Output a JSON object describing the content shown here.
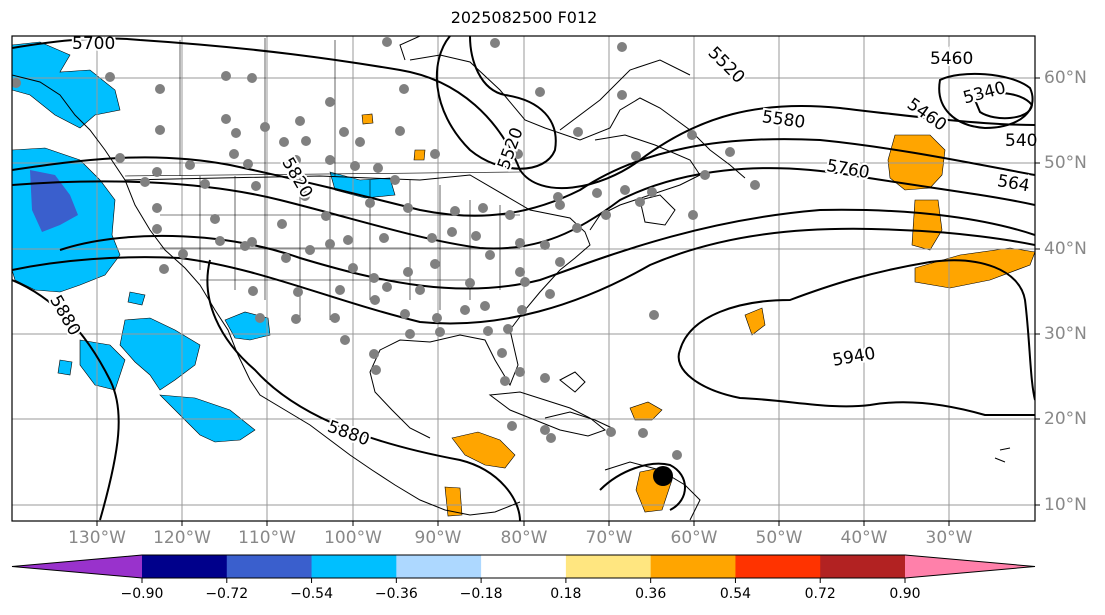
{
  "title": "2025082500 F012",
  "longitude_labels": [
    "130°W",
    "120°W",
    "110°W",
    "100°W",
    "90°W",
    "80°W",
    "70°W",
    "60°W",
    "50°W",
    "40°W",
    "30°W"
  ],
  "latitude_labels": [
    "60°N",
    "50°N",
    "40°N",
    "30°N",
    "20°N",
    "10°N"
  ],
  "contour_labels": [
    "5700",
    "5520",
    "5820",
    "5580",
    "5760",
    "5520",
    "5460",
    "5340",
    "5460",
    "540",
    "564",
    "5880",
    "5880",
    "5940"
  ],
  "colorbar": {
    "ticks": [
      "−0.90",
      "−0.72",
      "−0.54",
      "−0.36",
      "−0.18",
      "0.18",
      "0.36",
      "0.54",
      "0.72",
      "0.90"
    ],
    "colors": [
      "#9932cc",
      "#00008b",
      "#3a5fcd",
      "#00bfff",
      "#add8ff",
      "#ffffff",
      "#ffe680",
      "#ffa500",
      "#ff3300",
      "#b22222",
      "#ff80aa"
    ]
  },
  "fill_colors": {
    "positive": "#ffa500",
    "negative": "#00bfff",
    "strong_negative": "#3a5fcd"
  },
  "marker_color": "#808080"
}
